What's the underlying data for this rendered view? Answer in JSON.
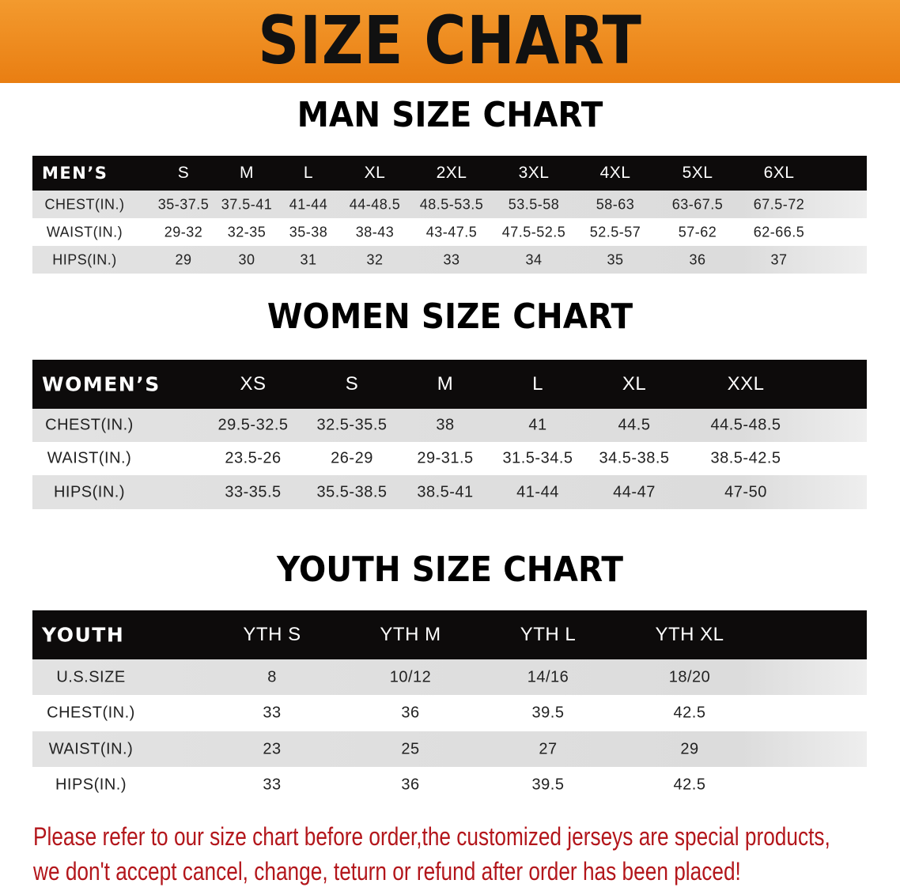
{
  "banner_title": "SIZE CHART",
  "colors": {
    "banner": "#ef8a1f",
    "header_row": "#0d0b0b",
    "note": "#b3161b"
  },
  "men": {
    "title": "MAN SIZE CHART",
    "header": [
      "MEN’S",
      "S",
      "M",
      "L",
      "XL",
      "2XL",
      "3XL",
      "4XL",
      "5XL",
      "6XL"
    ],
    "rows": [
      [
        "CHEST(IN.)",
        "35-37.5",
        "37.5-41",
        "41-44",
        "44-48.5",
        "48.5-53.5",
        "53.5-58",
        "58-63",
        "63-67.5",
        "67.5-72"
      ],
      [
        "WAIST(IN.)",
        "29-32",
        "32-35",
        "35-38",
        "38-43",
        "43-47.5",
        "47.5-52.5",
        "52.5-57",
        "57-62",
        "62-66.5"
      ],
      [
        "HIPS(IN.)",
        "29",
        "30",
        "31",
        "32",
        "33",
        "34",
        "35",
        "36",
        "37"
      ]
    ]
  },
  "women": {
    "title": "WOMEN SIZE CHART",
    "header": [
      "WOMEN’S",
      "XS",
      "S",
      "M",
      "L",
      "XL",
      "XXL"
    ],
    "rows": [
      [
        "CHEST(IN.)",
        "29.5-32.5",
        "32.5-35.5",
        "38",
        "41",
        "44.5",
        "44.5-48.5"
      ],
      [
        "WAIST(IN.)",
        "23.5-26",
        "26-29",
        "29-31.5",
        "31.5-34.5",
        "34.5-38.5",
        "38.5-42.5"
      ],
      [
        "HIPS(IN.)",
        "33-35.5",
        "35.5-38.5",
        "38.5-41",
        "41-44",
        "44-47",
        "47-50"
      ]
    ]
  },
  "youth": {
    "title": "YOUTH SIZE CHART",
    "header": [
      "YOUTH",
      "YTH S",
      "YTH M",
      "YTH L",
      "YTH XL"
    ],
    "rows": [
      [
        "U.S.SIZE",
        "8",
        "10/12",
        "14/16",
        "18/20"
      ],
      [
        "CHEST(IN.)",
        "33",
        "36",
        "39.5",
        "42.5"
      ],
      [
        "WAIST(IN.)",
        "23",
        "25",
        "27",
        "29"
      ],
      [
        "HIPS(IN.)",
        "33",
        "36",
        "39.5",
        "42.5"
      ]
    ]
  },
  "note": {
    "line1": "Please refer to our size chart before order,the customized jerseys are special products,",
    "line2": "we don't accept cancel, change, teturn or refund after order has been placed!"
  }
}
